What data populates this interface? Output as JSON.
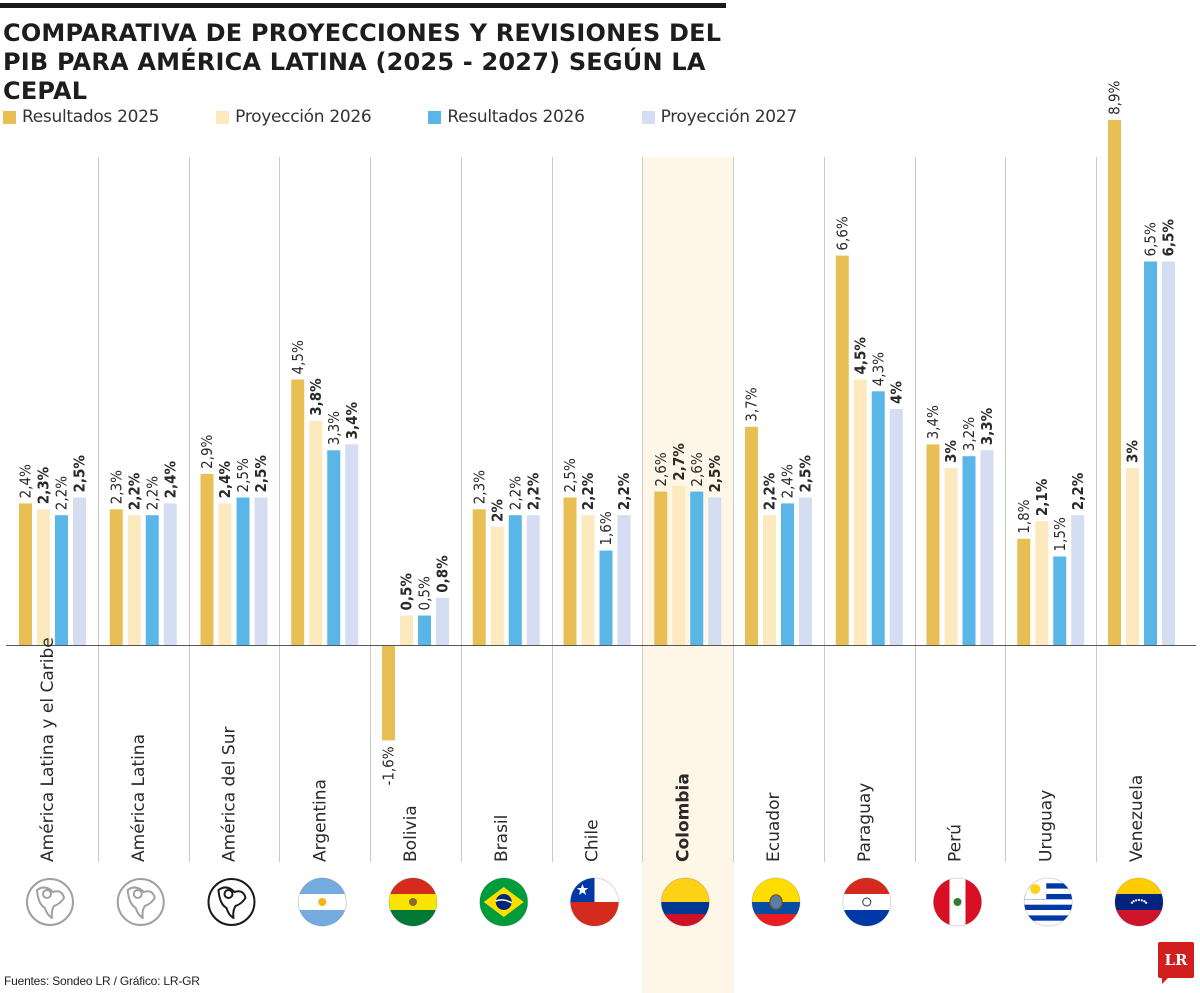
{
  "title": "COMPARATIVA DE PROYECCIONES Y REVISIONES DEL PIB PARA AMÉRICA LATINA (2025 - 2027) SEGÚN LA CEPAL",
  "legend": [
    {
      "label": "Resultados 2025",
      "color": "#e8bf55"
    },
    {
      "label": "Proyección 2026",
      "color": "#fce9be"
    },
    {
      "label": "Resultados 2026",
      "color": "#5bb6e8"
    },
    {
      "label": "Proyección 2027",
      "color": "#d4ddf1"
    }
  ],
  "chart_data": {
    "type": "bar",
    "categories": [
      "América Latina y el Caribe",
      "América Latina",
      "América del Sur",
      "Argentina",
      "Bolivia",
      "Brasil",
      "Chile",
      "Colombia",
      "Ecuador",
      "Paraguay",
      "Perú",
      "Uruguay",
      "Venezuela"
    ],
    "highlighted_category": "Colombia",
    "series": [
      {
        "name": "Resultados 2025",
        "color": "#e8bf55",
        "values": [
          2.4,
          2.3,
          2.9,
          4.5,
          -1.6,
          2.3,
          2.5,
          2.6,
          3.7,
          6.6,
          3.4,
          1.8,
          8.9
        ]
      },
      {
        "name": "Proyección 2026",
        "color": "#fce9be",
        "values": [
          2.3,
          2.2,
          2.4,
          3.8,
          0.5,
          2.0,
          2.2,
          2.7,
          2.2,
          4.5,
          3.0,
          2.1,
          3.0
        ]
      },
      {
        "name": "Resultados 2026",
        "color": "#5bb6e8",
        "values": [
          2.2,
          2.2,
          2.5,
          3.3,
          0.5,
          2.2,
          1.6,
          2.6,
          2.4,
          4.3,
          3.2,
          1.5,
          6.5
        ]
      },
      {
        "name": "Proyección 2027",
        "color": "#d4ddf1",
        "values": [
          2.5,
          2.4,
          2.5,
          3.4,
          0.8,
          2.2,
          2.2,
          2.5,
          2.5,
          4.0,
          3.3,
          2.2,
          6.5
        ]
      }
    ],
    "value_labels": [
      [
        "2,4%",
        "2,3%",
        "2,2%",
        "2,5%"
      ],
      [
        "2,3%",
        "2,2%",
        "2,2%",
        "2,4%"
      ],
      [
        "2,9%",
        "2,4%",
        "2,5%",
        "2,5%"
      ],
      [
        "4,5%",
        "3,8%",
        "3,3%",
        "3,4%"
      ],
      [
        "-1,6%",
        "0,5%",
        "0,5%",
        "0,8%"
      ],
      [
        "2,3%",
        "2%",
        "2,2%",
        "2,2%"
      ],
      [
        "2,5%",
        "2,2%",
        "1,6%",
        "2,2%"
      ],
      [
        "2,6%",
        "2,7%",
        "2,6%",
        "2,5%"
      ],
      [
        "3,7%",
        "2,2%",
        "2,4%",
        "2,5%"
      ],
      [
        "6,6%",
        "4,5%",
        "4,3%",
        "4%"
      ],
      [
        "3,4%",
        "3%",
        "3,2%",
        "3,3%"
      ],
      [
        "1,8%",
        "2,1%",
        "1,5%",
        "2,2%"
      ],
      [
        "8,9%",
        "3%",
        "6,5%",
        "6,5%"
      ]
    ],
    "bold_labels": [
      1,
      3
    ],
    "units": "%",
    "baseline": 0,
    "grid": false,
    "legend_position": "top-left"
  },
  "flags": [
    "latam-caribbean-map-icon",
    "latam-map-icon",
    "south-america-map-icon",
    "argentina-flag-icon",
    "bolivia-flag-icon",
    "brazil-flag-icon",
    "chile-flag-icon",
    "colombia-flag-icon",
    "ecuador-flag-icon",
    "paraguay-flag-icon",
    "peru-flag-icon",
    "uruguay-flag-icon",
    "venezuela-flag-icon"
  ],
  "source": "Fuentes: Sondeo LR / Gráfico: LR-GR",
  "logo_text": "LR"
}
